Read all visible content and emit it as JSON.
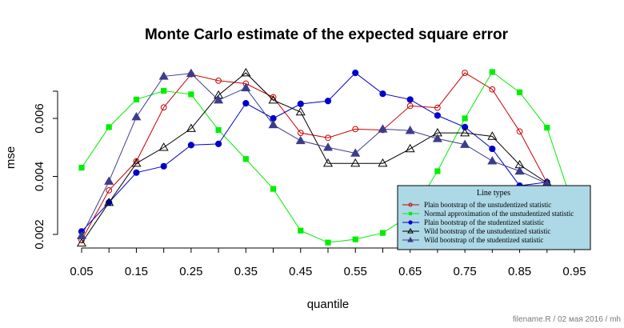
{
  "chart_data": {
    "type": "line",
    "title": "Monte Carlo estimate of the expected square error",
    "xlabel": "quantile",
    "ylabel": "mse",
    "x": [
      0.05,
      0.1,
      0.15,
      0.2,
      0.25,
      0.3,
      0.35,
      0.4,
      0.45,
      0.5,
      0.55,
      0.6,
      0.65,
      0.7,
      0.75,
      0.8,
      0.85,
      0.9,
      0.95
    ],
    "x_tick_labels": [
      "0.05",
      "0.15",
      "0.25",
      "0.35",
      "0.45",
      "0.55",
      "0.65",
      "0.75",
      "0.85",
      "0.95"
    ],
    "y_tick_labels": [
      "0.002",
      "0.004",
      "0.006"
    ],
    "xlim": [
      0.05,
      0.95
    ],
    "ylim": [
      0.0017,
      0.0077
    ],
    "legend_title": "Line types",
    "legend_position": "bottom-right",
    "series": [
      {
        "name": "Plain bootstrap of the unstudentized statistic",
        "color": "#cc0000",
        "marker": "circle-open",
        "values": [
          0.0018,
          0.00352,
          0.00452,
          0.00638,
          0.00752,
          0.0073,
          0.0072,
          0.00673,
          0.0055,
          0.00533,
          0.00563,
          0.0056,
          0.00643,
          0.00637,
          0.00757,
          0.007,
          0.00555,
          0.00378,
          0.00283
        ]
      },
      {
        "name": "Normal approximation of the unstudentized statistic",
        "color": "#00ee00",
        "marker": "square-filled",
        "values": [
          0.0043,
          0.0057,
          0.00665,
          0.00695,
          0.00683,
          0.0056,
          0.0046,
          0.00357,
          0.00213,
          0.00172,
          0.00183,
          0.00205,
          0.00265,
          0.00418,
          0.006,
          0.0076,
          0.0069,
          0.00568,
          0.00285
        ]
      },
      {
        "name": "Plain bootstrap of the studentized statistic",
        "color": "#0000cc",
        "marker": "circle-filled",
        "values": [
          0.0021,
          0.0031,
          0.00413,
          0.00435,
          0.00508,
          0.00512,
          0.00652,
          0.006,
          0.0065,
          0.0066,
          0.00757,
          0.00685,
          0.00665,
          0.0061,
          0.0057,
          0.00495,
          0.00368,
          0.0038,
          0.00278
        ]
      },
      {
        "name": "Wild bootstrap of the unstudentized statistic",
        "color": "#000000",
        "marker": "triangle-open",
        "values": [
          0.0017,
          0.0031,
          0.00445,
          0.005,
          0.00565,
          0.0068,
          0.00757,
          0.00663,
          0.00622,
          0.00445,
          0.00445,
          0.00445,
          0.00495,
          0.0055,
          0.0055,
          0.00538,
          0.0044,
          0.00378,
          0.00275
        ]
      },
      {
        "name": "Wild bootstrap of the studentized statistic",
        "color": "#3c3c8c",
        "marker": "triangle-filled",
        "values": [
          0.00195,
          0.00383,
          0.00605,
          0.00745,
          0.00755,
          0.00663,
          0.00705,
          0.00578,
          0.00523,
          0.005,
          0.0048,
          0.00563,
          0.00558,
          0.0053,
          0.0051,
          0.00453,
          0.00418,
          0.00375,
          0.0028
        ]
      }
    ]
  },
  "footer": "filename.R / 02 мая 2016 / mh"
}
